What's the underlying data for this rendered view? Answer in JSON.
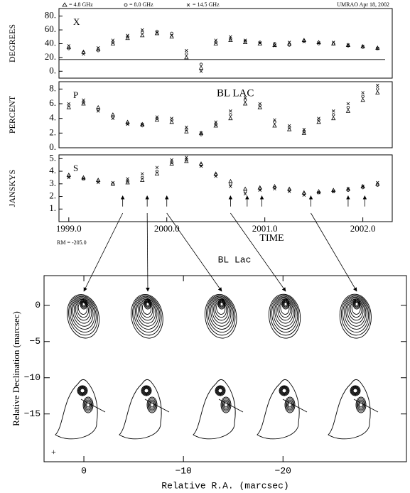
{
  "header": {
    "legend": [
      "= 4.8 GHz",
      "= 8.0 GHz",
      "= 14.5 GHz"
    ],
    "source": "UMRAO  Apr 18, 2002"
  },
  "chart_data": [
    {
      "type": "scatter",
      "panel_label": "X",
      "ylabel": "DEGREES",
      "xlim": [
        1998.9,
        2002.3
      ],
      "ylim": [
        -10,
        91
      ],
      "yticks": [
        {
          "value": 0,
          "label": "0."
        },
        {
          "value": 20,
          "label": "20."
        },
        {
          "value": 40,
          "label": "40."
        },
        {
          "value": 60,
          "label": "60."
        },
        {
          "value": 80,
          "label": "80."
        }
      ],
      "hline": 17,
      "x": [
        1999.0,
        1999.15,
        1999.3,
        1999.45,
        1999.6,
        1999.75,
        1999.9,
        2000.05,
        2000.2,
        2000.35,
        2000.5,
        2000.65,
        2000.8,
        2000.95,
        2001.1,
        2001.25,
        2001.4,
        2001.55,
        2001.7,
        2001.85,
        2002.0,
        2002.15
      ],
      "series": [
        {
          "name": "4.8 GHz",
          "color": "#000000",
          "values": [
            35,
            28,
            32,
            40,
            48,
            52,
            55,
            50,
            20,
            5,
            40,
            45,
            42,
            40,
            38,
            40,
            45,
            42,
            40,
            38,
            36,
            34
          ]
        },
        {
          "name": "8.0 GHz",
          "color": "#000000",
          "values": [
            33,
            27,
            30,
            42,
            50,
            56,
            58,
            55,
            25,
            10,
            42,
            47,
            44,
            42,
            40,
            38,
            44,
            40,
            40,
            37,
            35,
            33
          ]
        },
        {
          "name": "14.5 GHz",
          "color": "#000000",
          "values": [
            37,
            25,
            34,
            45,
            52,
            60,
            56,
            52,
            30,
            0,
            45,
            50,
            45,
            41,
            37,
            42,
            43,
            41,
            42,
            38,
            36,
            33
          ]
        }
      ]
    },
    {
      "type": "scatter",
      "panel_label": "P",
      "title": "BL LAC",
      "ylabel": "PERCENT",
      "xlim": [
        1998.9,
        2002.3
      ],
      "ylim": [
        0,
        9
      ],
      "yticks": [
        {
          "value": 0,
          "label": "0."
        },
        {
          "value": 2,
          "label": "2."
        },
        {
          "value": 4,
          "label": "4."
        },
        {
          "value": 6,
          "label": "6."
        },
        {
          "value": 8,
          "label": "8."
        }
      ],
      "x": [
        1999.0,
        1999.15,
        1999.3,
        1999.45,
        1999.6,
        1999.75,
        1999.9,
        2000.05,
        2000.2,
        2000.35,
        2000.5,
        2000.65,
        2000.8,
        2000.95,
        2001.1,
        2001.25,
        2001.4,
        2001.55,
        2001.7,
        2001.85,
        2002.0,
        2002.15
      ],
      "series": [
        {
          "name": "4.8 GHz",
          "color": "#000000",
          "values": [
            5.5,
            6,
            5.5,
            4.5,
            3.5,
            3.2,
            3.8,
            3.5,
            2.2,
            2,
            3,
            4,
            6,
            5.5,
            3,
            2.5,
            2,
            3.5,
            4,
            5,
            6.5,
            7.5
          ]
        },
        {
          "name": "8.0 GHz",
          "color": "#000000",
          "values": [
            5.8,
            6.2,
            5.2,
            4.2,
            3.3,
            3,
            4,
            3.8,
            2.5,
            1.8,
            3.2,
            4.5,
            6.5,
            5.8,
            3.5,
            2.8,
            2.2,
            3.8,
            4.5,
            5.5,
            7,
            8
          ]
        },
        {
          "name": "14.5 GHz",
          "color": "#000000",
          "values": [
            6,
            6.5,
            5,
            4,
            3.2,
            3.2,
            4.2,
            4,
            2.8,
            2,
            3.5,
            5,
            6.8,
            6,
            3.8,
            3,
            2.5,
            4,
            5,
            6,
            7.5,
            8.5
          ]
        }
      ]
    },
    {
      "type": "scatter",
      "panel_label": "S",
      "ylabel": "JANSKYS",
      "xlabel": "TIME",
      "annotation": "RM = -205.0",
      "xlim": [
        1998.9,
        2002.3
      ],
      "ylim": [
        0,
        5.3
      ],
      "xticks": [
        {
          "value": 1999,
          "label": "1999.0"
        },
        {
          "value": 2000,
          "label": "2000.0"
        },
        {
          "value": 2001,
          "label": "2001.0"
        },
        {
          "value": 2002,
          "label": "2002.0"
        }
      ],
      "yticks": [
        {
          "value": 1,
          "label": "1."
        },
        {
          "value": 2,
          "label": "2."
        },
        {
          "value": 3,
          "label": "3."
        },
        {
          "value": 4,
          "label": "4."
        },
        {
          "value": 5,
          "label": "5."
        }
      ],
      "arrows": [
        1999.55,
        1999.8,
        2000.0,
        2000.65,
        2000.82,
        2000.97,
        2001.47,
        2001.85,
        2002.02
      ],
      "x": [
        1999.0,
        1999.15,
        1999.3,
        1999.45,
        1999.6,
        1999.75,
        1999.9,
        2000.05,
        2000.2,
        2000.35,
        2000.5,
        2000.65,
        2000.8,
        2000.95,
        2001.1,
        2001.25,
        2001.4,
        2001.55,
        2001.7,
        2001.85,
        2002.0,
        2002.15
      ],
      "series": [
        {
          "name": "4.8 GHz",
          "color": "#000000",
          "values": [
            3.7,
            3.5,
            3.3,
            3.0,
            3.1,
            3.3,
            3.8,
            4.6,
            4.8,
            4.6,
            3.8,
            3.2,
            2.6,
            2.7,
            2.8,
            2.6,
            2.3,
            2.4,
            2.5,
            2.6,
            2.8,
            3.0
          ]
        },
        {
          "name": "8.0 GHz",
          "color": "#000000",
          "values": [
            3.6,
            3.4,
            3.2,
            3.0,
            3.2,
            3.5,
            4.0,
            4.7,
            4.9,
            4.5,
            3.7,
            3.0,
            2.4,
            2.6,
            2.7,
            2.5,
            2.2,
            2.3,
            2.4,
            2.5,
            2.7,
            2.9
          ]
        },
        {
          "name": "14.5 GHz",
          "color": "#000000",
          "values": [
            3.5,
            3.4,
            3.1,
            3.1,
            3.4,
            3.8,
            4.3,
            4.9,
            5.1,
            4.4,
            3.6,
            2.8,
            2.2,
            2.5,
            2.6,
            2.4,
            2.1,
            2.3,
            2.4,
            2.6,
            2.8,
            3.1
          ]
        }
      ]
    },
    {
      "type": "contour",
      "title": "BL Lac",
      "xlabel": "Relative R.A. (marcsec)",
      "ylabel": "Relative Declination (marcsec)",
      "xlim": [
        4,
        -32.4
      ],
      "ylim": [
        -21.6,
        4.1
      ],
      "xticks": [
        0,
        {
          "value": -10,
          "label": "−10"
        },
        {
          "value": -20,
          "label": "−20"
        }
      ],
      "yticks": [
        0,
        {
          "value": -5,
          "label": "−5"
        },
        {
          "value": -10,
          "label": "−10"
        },
        {
          "value": -15,
          "label": "−15"
        }
      ]
    }
  ]
}
